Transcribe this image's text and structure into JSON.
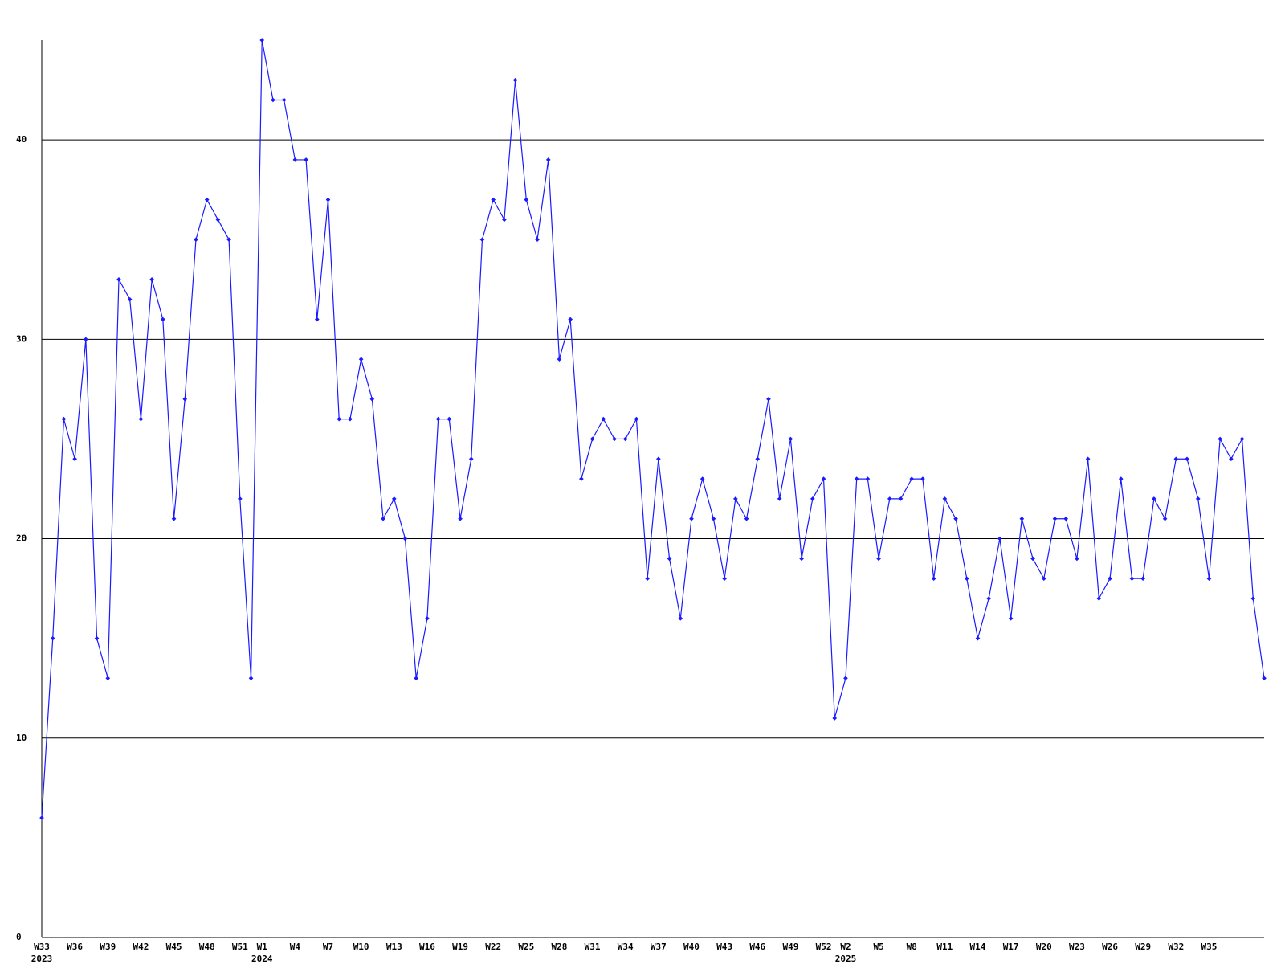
{
  "chart_data": {
    "type": "line",
    "categories": [
      "W33",
      null,
      null,
      "W36",
      null,
      null,
      "W39",
      null,
      null,
      "W42",
      null,
      null,
      "W45",
      null,
      null,
      "W48",
      null,
      null,
      "W51",
      null,
      "W1",
      null,
      null,
      "W4",
      null,
      null,
      "W7",
      null,
      null,
      "W10",
      null,
      null,
      "W13",
      null,
      null,
      "W16",
      null,
      null,
      "W19",
      null,
      null,
      "W22",
      null,
      null,
      "W25",
      null,
      null,
      "W28",
      null,
      null,
      "W31",
      null,
      null,
      "W34",
      null,
      null,
      "W37",
      null,
      null,
      "W40",
      null,
      null,
      "W43",
      null,
      null,
      "W46",
      null,
      null,
      "W49",
      null,
      null,
      "W52",
      null,
      "W2",
      null,
      null,
      "W5",
      null,
      null,
      "W8",
      null,
      null,
      "W11",
      null,
      null,
      "W14",
      null,
      null,
      "W17",
      null,
      null,
      "W20",
      null,
      null,
      "W23",
      null,
      null,
      "W26",
      null,
      null,
      "W29",
      null,
      null,
      "W32",
      null,
      null,
      "W35",
      null,
      null,
      null,
      null,
      null
    ],
    "year_labels": [
      "2023",
      null,
      null,
      null,
      null,
      null,
      null,
      null,
      null,
      null,
      null,
      null,
      null,
      null,
      null,
      null,
      null,
      null,
      null,
      null,
      "2024",
      null,
      null,
      null,
      null,
      null,
      null,
      null,
      null,
      null,
      null,
      null,
      null,
      null,
      null,
      null,
      null,
      null,
      null,
      null,
      null,
      null,
      null,
      null,
      null,
      null,
      null,
      null,
      null,
      null,
      null,
      null,
      null,
      null,
      null,
      null,
      null,
      null,
      null,
      null,
      null,
      null,
      null,
      null,
      null,
      null,
      null,
      null,
      null,
      null,
      null,
      null,
      null,
      "2025",
      null,
      null,
      null,
      null,
      null,
      null,
      null,
      null,
      null,
      null,
      null,
      null,
      null,
      null,
      null,
      null,
      null,
      null,
      null,
      null,
      null,
      null,
      null,
      null,
      null,
      null,
      null,
      null,
      null,
      null,
      null,
      null,
      null,
      null,
      null,
      null,
      null
    ],
    "series": [
      {
        "color": "#1a1aff",
        "values": [
          6,
          15,
          26,
          24,
          30,
          15,
          13,
          33,
          32,
          26,
          33,
          31,
          21,
          27,
          35,
          37,
          36,
          35,
          22,
          13,
          45,
          42,
          42,
          39,
          39,
          31,
          37,
          26,
          26,
          29,
          27,
          21,
          22,
          20,
          13,
          16,
          26,
          26,
          21,
          24,
          35,
          37,
          36,
          43,
          37,
          35,
          39,
          29,
          31,
          23,
          25,
          26,
          25,
          25,
          26,
          18,
          24,
          19,
          16,
          21,
          23,
          21,
          18,
          22,
          21,
          24,
          27,
          22,
          25,
          19,
          22,
          23,
          11,
          13,
          23,
          23,
          19,
          22,
          22,
          23,
          23,
          18,
          22,
          21,
          18,
          15,
          17,
          20,
          16,
          21,
          19,
          18,
          21,
          21,
          19,
          24,
          17,
          18,
          23,
          18,
          18,
          22,
          21,
          24,
          24,
          22,
          18,
          25,
          24,
          25,
          17,
          13
        ]
      }
    ],
    "ylim": [
      0,
      45
    ],
    "yticks": [
      0,
      10,
      20,
      30,
      40
    ],
    "grid": true
  }
}
